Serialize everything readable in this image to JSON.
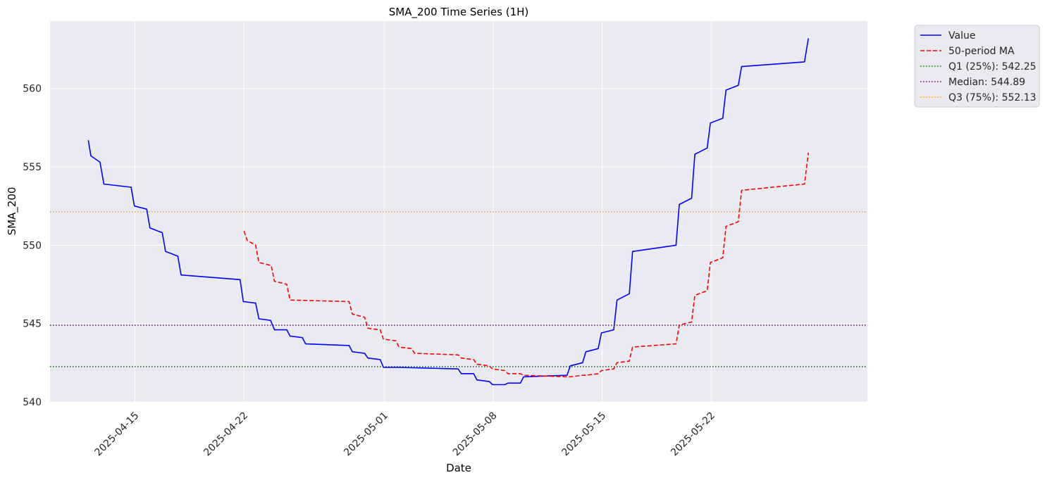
{
  "chart_data": {
    "type": "line",
    "title": "SMA_200 Time Series (1H)",
    "xlabel": "Date",
    "ylabel": "SMA_200",
    "ylim": [
      540,
      564.3
    ],
    "xlim": [
      "2025-04-09T13:00",
      "2025-06-01T01:00"
    ],
    "x_ticks": [
      "2025-04-15",
      "2025-04-22",
      "2025-05-01",
      "2025-05-08",
      "2025-05-15",
      "2025-05-22"
    ],
    "y_ticks": [
      540,
      545,
      550,
      555,
      560
    ],
    "grid": true,
    "legend_position": "outside top-right",
    "background_color": "#eaeaf2",
    "series": [
      {
        "name": "Value",
        "color": "#0000ff",
        "style": "solid",
        "points": [
          [
            "2025-04-12T00:00",
            556.7
          ],
          [
            "2025-04-12T04:00",
            555.7
          ],
          [
            "2025-04-12T18:00",
            555.3
          ],
          [
            "2025-04-13T00:00",
            553.9
          ],
          [
            "2025-04-14T18:00",
            553.7
          ],
          [
            "2025-04-14T23:00",
            552.5
          ],
          [
            "2025-04-15T18:00",
            552.3
          ],
          [
            "2025-04-15T23:00",
            551.1
          ],
          [
            "2025-04-16T18:00",
            550.8
          ],
          [
            "2025-04-16T23:00",
            549.6
          ],
          [
            "2025-04-17T18:00",
            549.3
          ],
          [
            "2025-04-17T23:00",
            548.1
          ],
          [
            "2025-04-21T18:00",
            547.8
          ],
          [
            "2025-04-21T23:00",
            546.4
          ],
          [
            "2025-04-22T18:00",
            546.3
          ],
          [
            "2025-04-22T23:00",
            545.3
          ],
          [
            "2025-04-23T17:00",
            545.2
          ],
          [
            "2025-04-23T23:00",
            544.6
          ],
          [
            "2025-04-24T18:00",
            544.6
          ],
          [
            "2025-04-24T23:00",
            544.2
          ],
          [
            "2025-04-25T18:00",
            544.1
          ],
          [
            "2025-04-25T23:00",
            543.7
          ],
          [
            "2025-04-28T18:00",
            543.6
          ],
          [
            "2025-04-28T23:00",
            543.2
          ],
          [
            "2025-04-29T18:00",
            543.1
          ],
          [
            "2025-04-29T23:00",
            542.8
          ],
          [
            "2025-04-30T18:00",
            542.7
          ],
          [
            "2025-04-30T23:00",
            542.2
          ],
          [
            "2025-05-01T18:00",
            542.2
          ],
          [
            "2025-05-02T00:00",
            542.2
          ],
          [
            "2025-05-05T18:00",
            542.1
          ],
          [
            "2025-05-05T23:00",
            541.8
          ],
          [
            "2025-05-06T18:00",
            541.8
          ],
          [
            "2025-05-06T23:00",
            541.4
          ],
          [
            "2025-05-07T18:00",
            541.3
          ],
          [
            "2025-05-07T23:00",
            541.1
          ],
          [
            "2025-05-08T18:00",
            541.1
          ],
          [
            "2025-05-08T23:00",
            541.2
          ],
          [
            "2025-05-09T18:00",
            541.2
          ],
          [
            "2025-05-09T23:00",
            541.6
          ],
          [
            "2025-05-12T18:00",
            541.7
          ],
          [
            "2025-05-12T23:00",
            542.3
          ],
          [
            "2025-05-13T18:00",
            542.5
          ],
          [
            "2025-05-13T23:00",
            543.2
          ],
          [
            "2025-05-14T18:00",
            543.4
          ],
          [
            "2025-05-14T23:00",
            544.4
          ],
          [
            "2025-05-15T18:00",
            544.6
          ],
          [
            "2025-05-15T23:00",
            546.5
          ],
          [
            "2025-05-16T18:00",
            546.9
          ],
          [
            "2025-05-16T23:00",
            549.6
          ],
          [
            "2025-05-19T18:00",
            550.0
          ],
          [
            "2025-05-19T23:00",
            552.6
          ],
          [
            "2025-05-20T18:00",
            553.0
          ],
          [
            "2025-05-20T23:00",
            555.8
          ],
          [
            "2025-05-21T18:00",
            556.2
          ],
          [
            "2025-05-21T23:00",
            557.8
          ],
          [
            "2025-05-22T18:00",
            558.1
          ],
          [
            "2025-05-22T23:00",
            559.9
          ],
          [
            "2025-05-23T18:00",
            560.2
          ],
          [
            "2025-05-23T23:00",
            561.4
          ],
          [
            "2025-05-28T00:00",
            561.7
          ],
          [
            "2025-05-28T06:00",
            563.2
          ]
        ]
      },
      {
        "name": "50-period MA",
        "color": "#ff0000",
        "style": "dashed",
        "points": [
          [
            "2025-04-22T00:00",
            550.9
          ],
          [
            "2025-04-22T05:00",
            550.3
          ],
          [
            "2025-04-22T18:00",
            550.0
          ],
          [
            "2025-04-22T23:00",
            548.9
          ],
          [
            "2025-04-23T18:00",
            548.7
          ],
          [
            "2025-04-23T23:00",
            547.7
          ],
          [
            "2025-04-24T18:00",
            547.5
          ],
          [
            "2025-04-24T23:00",
            546.5
          ],
          [
            "2025-04-28T18:00",
            546.4
          ],
          [
            "2025-04-28T23:00",
            545.6
          ],
          [
            "2025-04-29T18:00",
            545.4
          ],
          [
            "2025-04-29T23:00",
            544.7
          ],
          [
            "2025-04-30T18:00",
            544.6
          ],
          [
            "2025-04-30T23:00",
            544.0
          ],
          [
            "2025-05-01T18:00",
            543.9
          ],
          [
            "2025-05-01T23:00",
            543.5
          ],
          [
            "2025-05-02T18:00",
            543.4
          ],
          [
            "2025-05-02T23:00",
            543.1
          ],
          [
            "2025-05-05T18:00",
            543.0
          ],
          [
            "2025-05-05T23:00",
            542.8
          ],
          [
            "2025-05-06T18:00",
            542.7
          ],
          [
            "2025-05-06T23:00",
            542.4
          ],
          [
            "2025-05-07T18:00",
            542.3
          ],
          [
            "2025-05-07T23:00",
            542.1
          ],
          [
            "2025-05-08T18:00",
            542.0
          ],
          [
            "2025-05-08T23:00",
            541.8
          ],
          [
            "2025-05-09T18:00",
            541.8
          ],
          [
            "2025-05-09T23:00",
            541.7
          ],
          [
            "2025-05-12T18:00",
            541.6
          ],
          [
            "2025-05-12T23:00",
            541.6
          ],
          [
            "2025-05-13T18:00",
            541.7
          ],
          [
            "2025-05-13T23:00",
            541.7
          ],
          [
            "2025-05-14T18:00",
            541.8
          ],
          [
            "2025-05-14T23:00",
            542.0
          ],
          [
            "2025-05-15T18:00",
            542.1
          ],
          [
            "2025-05-15T23:00",
            542.5
          ],
          [
            "2025-05-16T18:00",
            542.6
          ],
          [
            "2025-05-16T23:00",
            543.5
          ],
          [
            "2025-05-19T18:00",
            543.7
          ],
          [
            "2025-05-19T23:00",
            544.9
          ],
          [
            "2025-05-20T18:00",
            545.1
          ],
          [
            "2025-05-20T23:00",
            546.8
          ],
          [
            "2025-05-21T18:00",
            547.1
          ],
          [
            "2025-05-21T23:00",
            548.9
          ],
          [
            "2025-05-22T18:00",
            549.2
          ],
          [
            "2025-05-22T23:00",
            551.2
          ],
          [
            "2025-05-23T18:00",
            551.5
          ],
          [
            "2025-05-23T23:00",
            553.5
          ],
          [
            "2025-05-28T00:00",
            553.9
          ],
          [
            "2025-05-28T06:00",
            555.9
          ]
        ]
      }
    ],
    "hlines": [
      {
        "name": "Q1 (25%): 542.25",
        "value": 542.25,
        "color": "#008000"
      },
      {
        "name": "Median: 544.89",
        "value": 544.89,
        "color": "#800080"
      },
      {
        "name": "Q3 (75%): 552.13",
        "value": 552.13,
        "color": "#ffa500"
      }
    ]
  }
}
